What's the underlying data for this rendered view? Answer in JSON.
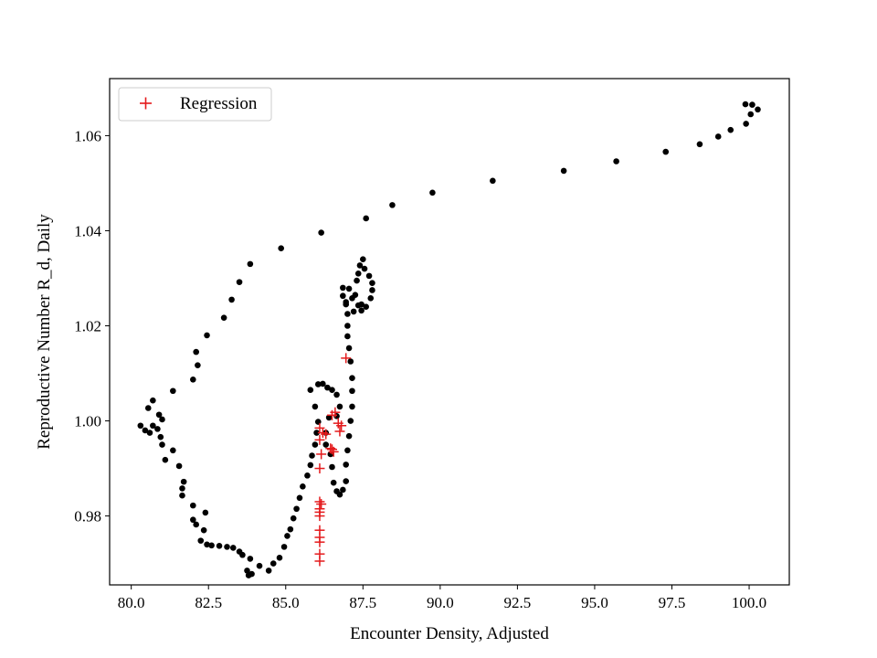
{
  "chart_data": {
    "type": "scatter",
    "title": "",
    "xlabel": "Encounter Density, Adjusted",
    "ylabel": "Reproductive Number R_d, Daily",
    "xlim": [
      79.3,
      101.3
    ],
    "ylim": [
      0.9655,
      1.072
    ],
    "xticks": [
      80.0,
      82.5,
      85.0,
      87.5,
      90.0,
      92.5,
      95.0,
      97.5,
      100.0
    ],
    "xtick_labels": [
      "80.0",
      "82.5",
      "85.0",
      "87.5",
      "90.0",
      "92.5",
      "95.0",
      "97.5",
      "100.0"
    ],
    "yticks": [
      0.98,
      1.0,
      1.02,
      1.04,
      1.06
    ],
    "ytick_labels": [
      "0.98",
      "1.00",
      "1.02",
      "1.04",
      "1.06"
    ],
    "grid": false,
    "legend": {
      "position": "upper-left",
      "entries": [
        "Regression"
      ]
    },
    "series": [
      {
        "name": "",
        "marker": "dot",
        "color": "#000000",
        "points": [
          [
            100.28,
            1.0655
          ],
          [
            100.1,
            1.0665
          ],
          [
            99.88,
            1.0666
          ],
          [
            100.05,
            1.0645
          ],
          [
            99.9,
            1.0625
          ],
          [
            99.4,
            1.0612
          ],
          [
            99.0,
            1.0598
          ],
          [
            98.4,
            1.0582
          ],
          [
            97.3,
            1.0566
          ],
          [
            95.7,
            1.0546
          ],
          [
            94.0,
            1.0526
          ],
          [
            91.7,
            1.0505
          ],
          [
            89.75,
            1.048
          ],
          [
            88.45,
            1.0454
          ],
          [
            87.6,
            1.0426
          ],
          [
            86.15,
            1.0396
          ],
          [
            84.85,
            1.0363
          ],
          [
            83.85,
            1.033
          ],
          [
            83.5,
            1.0292
          ],
          [
            83.25,
            1.0255
          ],
          [
            83.0,
            1.0217
          ],
          [
            82.45,
            1.018
          ],
          [
            82.1,
            1.0145
          ],
          [
            82.15,
            1.0117
          ],
          [
            82.0,
            1.0087
          ],
          [
            81.35,
            1.0063
          ],
          [
            80.7,
            1.0043
          ],
          [
            80.55,
            1.0027
          ],
          [
            80.3,
            0.999
          ],
          [
            80.45,
            0.998
          ],
          [
            80.6,
            0.9975
          ],
          [
            80.7,
            0.999
          ],
          [
            80.9,
            1.0013
          ],
          [
            81.0,
            1.0003
          ],
          [
            80.85,
            0.9983
          ],
          [
            80.95,
            0.9966
          ],
          [
            81.0,
            0.995
          ],
          [
            81.1,
            0.9918
          ],
          [
            81.35,
            0.9938
          ],
          [
            81.55,
            0.9905
          ],
          [
            81.7,
            0.9872
          ],
          [
            81.65,
            0.9858
          ],
          [
            81.65,
            0.9843
          ],
          [
            82.0,
            0.9822
          ],
          [
            82.0,
            0.9792
          ],
          [
            82.1,
            0.9782
          ],
          [
            82.4,
            0.9807
          ],
          [
            82.35,
            0.977
          ],
          [
            82.25,
            0.9748
          ],
          [
            82.45,
            0.974
          ],
          [
            82.6,
            0.9738
          ],
          [
            82.85,
            0.9737
          ],
          [
            83.1,
            0.9735
          ],
          [
            83.3,
            0.9733
          ],
          [
            83.5,
            0.9725
          ],
          [
            83.6,
            0.9718
          ],
          [
            83.75,
            0.9685
          ],
          [
            83.9,
            0.9678
          ],
          [
            83.8,
            0.9675
          ],
          [
            83.85,
            0.971
          ],
          [
            84.15,
            0.9695
          ],
          [
            84.45,
            0.9685
          ],
          [
            84.6,
            0.97
          ],
          [
            84.8,
            0.9712
          ],
          [
            84.95,
            0.9735
          ],
          [
            85.05,
            0.9758
          ],
          [
            85.15,
            0.9772
          ],
          [
            85.25,
            0.9795
          ],
          [
            85.35,
            0.9815
          ],
          [
            85.45,
            0.9838
          ],
          [
            85.55,
            0.9862
          ],
          [
            85.7,
            0.9885
          ],
          [
            85.8,
            0.9907
          ],
          [
            85.85,
            0.9927
          ],
          [
            85.95,
            0.995
          ],
          [
            86.0,
            0.9975
          ],
          [
            86.05,
            0.9998
          ],
          [
            85.95,
            1.003
          ],
          [
            85.8,
            1.0065
          ],
          [
            86.05,
            1.0077
          ],
          [
            86.2,
            1.0078
          ],
          [
            86.35,
            1.007
          ],
          [
            86.5,
            1.0065
          ],
          [
            86.65,
            1.0055
          ],
          [
            86.75,
            1.003
          ],
          [
            86.65,
            1.001
          ],
          [
            86.4,
            1.0007
          ],
          [
            86.3,
            0.9975
          ],
          [
            86.3,
            0.995
          ],
          [
            86.45,
            0.993
          ],
          [
            86.5,
            0.9903
          ],
          [
            86.55,
            0.987
          ],
          [
            86.65,
            0.9852
          ],
          [
            86.75,
            0.9845
          ],
          [
            86.85,
            0.9855
          ],
          [
            86.95,
            0.9873
          ],
          [
            86.95,
            0.9908
          ],
          [
            87.0,
            0.9938
          ],
          [
            87.05,
            0.9968
          ],
          [
            87.1,
            1.0
          ],
          [
            87.15,
            1.003
          ],
          [
            87.15,
            1.0063
          ],
          [
            87.15,
            1.009
          ],
          [
            87.1,
            1.0125
          ],
          [
            87.05,
            1.0153
          ],
          [
            87.0,
            1.0178
          ],
          [
            87.0,
            1.02
          ],
          [
            87.0,
            1.0225
          ],
          [
            86.95,
            1.0245
          ],
          [
            86.85,
            1.0263
          ],
          [
            86.85,
            1.028
          ],
          [
            87.05,
            1.0278
          ],
          [
            87.25,
            1.0265
          ],
          [
            87.35,
            1.0243
          ],
          [
            87.45,
            1.0232
          ],
          [
            87.6,
            1.024
          ],
          [
            87.75,
            1.0258
          ],
          [
            87.8,
            1.0275
          ],
          [
            87.8,
            1.029
          ],
          [
            87.7,
            1.0305
          ],
          [
            87.55,
            1.032
          ],
          [
            87.5,
            1.034
          ],
          [
            87.4,
            1.0327
          ],
          [
            87.35,
            1.031
          ],
          [
            87.3,
            1.0295
          ],
          [
            87.15,
            1.0258
          ],
          [
            87.2,
            1.023
          ],
          [
            87.45,
            1.0245
          ],
          [
            86.95,
            1.025
          ]
        ]
      },
      {
        "name": "Regression",
        "marker": "plus",
        "color": "#e41a1c",
        "points": [
          [
            86.1,
            0.9705
          ],
          [
            86.1,
            0.972
          ],
          [
            86.1,
            0.9745
          ],
          [
            86.1,
            0.9755
          ],
          [
            86.1,
            0.977
          ],
          [
            86.1,
            0.98
          ],
          [
            86.1,
            0.9808
          ],
          [
            86.1,
            0.9815
          ],
          [
            86.15,
            0.9825
          ],
          [
            86.1,
            0.983
          ],
          [
            86.1,
            0.99
          ],
          [
            86.15,
            0.993
          ],
          [
            86.1,
            0.996
          ],
          [
            86.3,
            0.9972
          ],
          [
            86.2,
            0.9975
          ],
          [
            86.1,
            0.9985
          ],
          [
            86.45,
            0.9942
          ],
          [
            86.5,
            0.994
          ],
          [
            86.55,
            0.9935
          ],
          [
            86.5,
            1.0012
          ],
          [
            86.6,
            1.0018
          ],
          [
            86.75,
            0.9978
          ],
          [
            86.8,
            0.999
          ],
          [
            86.7,
            0.9995
          ],
          [
            86.95,
            1.0132
          ]
        ]
      }
    ]
  }
}
